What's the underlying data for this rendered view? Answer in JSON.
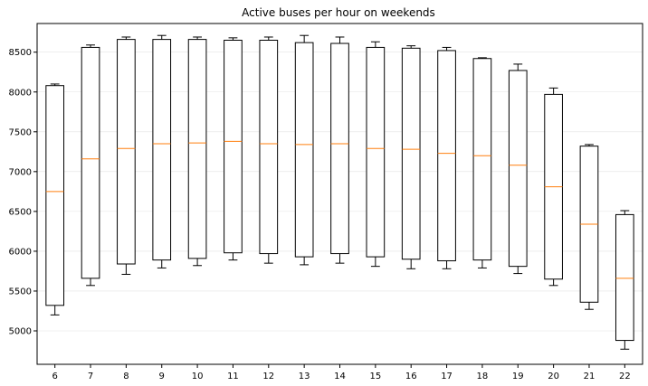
{
  "chart_data": {
    "type": "boxplot",
    "title": "Active buses per hour on weekends",
    "xlabel": "",
    "ylabel": "",
    "categories": [
      "6",
      "7",
      "8",
      "9",
      "10",
      "11",
      "12",
      "13",
      "14",
      "15",
      "16",
      "17",
      "18",
      "19",
      "20",
      "21",
      "22"
    ],
    "boxes": [
      {
        "whislo": 5200,
        "q1": 5320,
        "med": 6750,
        "q3": 8080,
        "whishi": 8100
      },
      {
        "whislo": 5570,
        "q1": 5660,
        "med": 7160,
        "q3": 8560,
        "whishi": 8590
      },
      {
        "whislo": 5710,
        "q1": 5840,
        "med": 7290,
        "q3": 8660,
        "whishi": 8690
      },
      {
        "whislo": 5790,
        "q1": 5890,
        "med": 7350,
        "q3": 8660,
        "whishi": 8710
      },
      {
        "whislo": 5820,
        "q1": 5910,
        "med": 7360,
        "q3": 8660,
        "whishi": 8690
      },
      {
        "whislo": 5890,
        "q1": 5980,
        "med": 7380,
        "q3": 8650,
        "whishi": 8680
      },
      {
        "whislo": 5850,
        "q1": 5970,
        "med": 7350,
        "q3": 8650,
        "whishi": 8690
      },
      {
        "whislo": 5830,
        "q1": 5930,
        "med": 7340,
        "q3": 8620,
        "whishi": 8710
      },
      {
        "whislo": 5850,
        "q1": 5970,
        "med": 7350,
        "q3": 8610,
        "whishi": 8690
      },
      {
        "whislo": 5810,
        "q1": 5930,
        "med": 7290,
        "q3": 8560,
        "whishi": 8630
      },
      {
        "whislo": 5780,
        "q1": 5900,
        "med": 7280,
        "q3": 8550,
        "whishi": 8580
      },
      {
        "whislo": 5780,
        "q1": 5880,
        "med": 7230,
        "q3": 8520,
        "whishi": 8560
      },
      {
        "whislo": 5790,
        "q1": 5890,
        "med": 7200,
        "q3": 8420,
        "whishi": 8430
      },
      {
        "whislo": 5720,
        "q1": 5810,
        "med": 7080,
        "q3": 8270,
        "whishi": 8350
      },
      {
        "whislo": 5570,
        "q1": 5650,
        "med": 6810,
        "q3": 7970,
        "whishi": 8050
      },
      {
        "whislo": 5270,
        "q1": 5360,
        "med": 6340,
        "q3": 7320,
        "whishi": 7340
      },
      {
        "whislo": 4770,
        "q1": 4880,
        "med": 5660,
        "q3": 6460,
        "whishi": 6510
      }
    ],
    "yticks": [
      5000,
      5500,
      6000,
      6500,
      7000,
      7500,
      8000,
      8500
    ],
    "ylim": [
      4580,
      8860
    ],
    "grid": "horizontal",
    "colors": {
      "box": "#000000",
      "median": "#ff7f0e",
      "grid": "#b0b0b0"
    }
  }
}
